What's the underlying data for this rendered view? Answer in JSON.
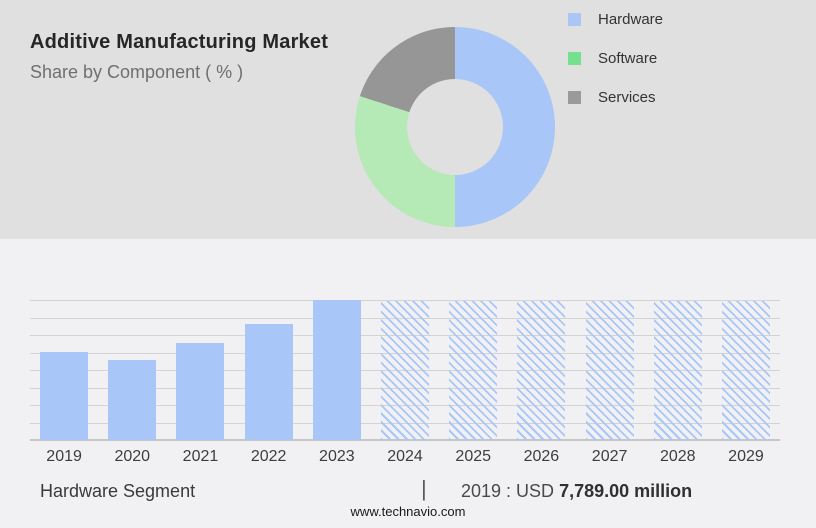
{
  "header": {
    "title": "Additive Manufacturing Market",
    "subtitle": "Share by Component ( % )"
  },
  "chart_data": [
    {
      "type": "pie",
      "donut": true,
      "title": "Additive Manufacturing Market - Share by Component (%)",
      "labels": [
        "Hardware",
        "Software",
        "Services"
      ],
      "values": [
        50,
        30,
        20
      ],
      "slice_colors": [
        "#a8c6f8",
        "#b5e9b6",
        "#969696"
      ],
      "legend_colors": [
        "#a9c6f7",
        "#75e18e",
        "#9a9a9a"
      ],
      "legend_position": "right",
      "start_angle_deg": 0,
      "inner_radius_ratio": 0.48
    },
    {
      "type": "bar",
      "series_name": "Hardware Segment",
      "unit": "USD million",
      "known_value": {
        "year": "2019",
        "value": "7,789.00",
        "unit": "USD million"
      },
      "categories": [
        "2019",
        "2020",
        "2021",
        "2022",
        "2023",
        "2024",
        "2025",
        "2026",
        "2027",
        "2028",
        "2029"
      ],
      "values_relative": [
        0.63,
        0.57,
        0.69,
        0.83,
        1.0,
        0.99,
        0.99,
        0.99,
        0.99,
        0.99,
        0.99
      ],
      "bar_styles": [
        "solid",
        "solid",
        "solid",
        "solid",
        "solid",
        "hatched",
        "hatched",
        "hatched",
        "hatched",
        "hatched",
        "hatched"
      ],
      "bar_color": "#a8c6f8",
      "grid": true,
      "gridline_count": 9,
      "note": "2024-2029 are hatched forecast bars of equal height"
    }
  ],
  "footer": {
    "segment_label": "Hardware Segment",
    "separator": "|",
    "value_prefix": "2019 : USD ",
    "value_bold": "7,789.00 million",
    "website": "www.technavio.com"
  },
  "colors": {
    "header_bg": "#e0e0e0",
    "body_bg": "#f1f1f3",
    "gridline": "#d3d3d3",
    "axis_line": "#c6c6c6",
    "title_text": "#262626",
    "subtitle_text": "#6f6f6f"
  }
}
